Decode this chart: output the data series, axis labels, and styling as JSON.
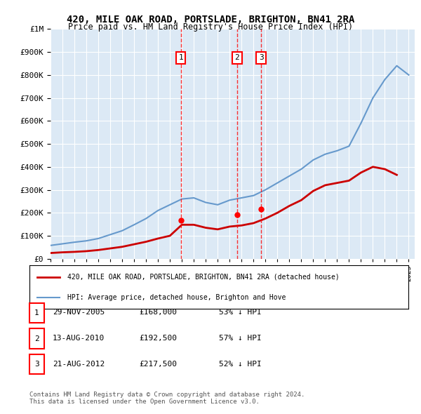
{
  "title1": "420, MILE OAK ROAD, PORTSLADE, BRIGHTON, BN41 2RA",
  "title2": "Price paid vs. HM Land Registry's House Price Index (HPI)",
  "background_color": "#dce9f5",
  "plot_bg_color": "#dce9f5",
  "ylabel_ticks": [
    "£0",
    "£100K",
    "£200K",
    "£300K",
    "£400K",
    "£500K",
    "£600K",
    "£700K",
    "£800K",
    "£900K",
    "£1M"
  ],
  "ytick_values": [
    0,
    100000,
    200000,
    300000,
    400000,
    500000,
    600000,
    700000,
    800000,
    900000,
    1000000
  ],
  "ylim": [
    0,
    1000000
  ],
  "xlim_start": 1995.0,
  "xlim_end": 2025.5,
  "sale_dates": [
    2005.91,
    2010.62,
    2012.64
  ],
  "sale_prices": [
    168000,
    192500,
    217500
  ],
  "sale_labels": [
    "1",
    "2",
    "3"
  ],
  "legend_entries": [
    {
      "label": "420, MILE OAK ROAD, PORTSLADE, BRIGHTON, BN41 2RA (detached house)",
      "color": "#cc0000",
      "lw": 2
    },
    {
      "label": "HPI: Average price, detached house, Brighton and Hove",
      "color": "#6699cc",
      "lw": 1.5
    }
  ],
  "table_rows": [
    {
      "num": "1",
      "date": "29-NOV-2005",
      "price": "£168,000",
      "pct": "53% ↓ HPI"
    },
    {
      "num": "2",
      "date": "13-AUG-2010",
      "price": "£192,500",
      "pct": "57% ↓ HPI"
    },
    {
      "num": "3",
      "date": "21-AUG-2012",
      "price": "£217,500",
      "pct": "52% ↓ HPI"
    }
  ],
  "footer": "Contains HM Land Registry data © Crown copyright and database right 2024.\nThis data is licensed under the Open Government Licence v3.0.",
  "hpi_years": [
    1995,
    1996,
    1997,
    1998,
    1999,
    2000,
    2001,
    2002,
    2003,
    2004,
    2005,
    2006,
    2007,
    2008,
    2009,
    2010,
    2011,
    2012,
    2013,
    2014,
    2015,
    2016,
    2017,
    2018,
    2019,
    2020,
    2021,
    2022,
    2023,
    2024,
    2025
  ],
  "hpi_values": [
    58000,
    65000,
    72000,
    78000,
    88000,
    105000,
    122000,
    148000,
    175000,
    210000,
    235000,
    260000,
    265000,
    245000,
    235000,
    255000,
    265000,
    275000,
    300000,
    330000,
    360000,
    390000,
    430000,
    455000,
    470000,
    490000,
    590000,
    700000,
    780000,
    840000,
    800000
  ],
  "property_years": [
    1995,
    1996,
    1997,
    1998,
    1999,
    2000,
    2001,
    2002,
    2003,
    2004,
    2005,
    2006,
    2007,
    2008,
    2009,
    2010,
    2011,
    2012,
    2013,
    2014,
    2015,
    2016,
    2017,
    2018,
    2019,
    2020,
    2021,
    2022,
    2023,
    2024
  ],
  "property_values": [
    25000,
    28000,
    30000,
    33000,
    38000,
    45000,
    52000,
    63000,
    74000,
    88000,
    100000,
    148000,
    148000,
    135000,
    128000,
    140000,
    145000,
    155000,
    175000,
    200000,
    230000,
    255000,
    295000,
    320000,
    330000,
    340000,
    375000,
    400000,
    390000,
    365000
  ]
}
